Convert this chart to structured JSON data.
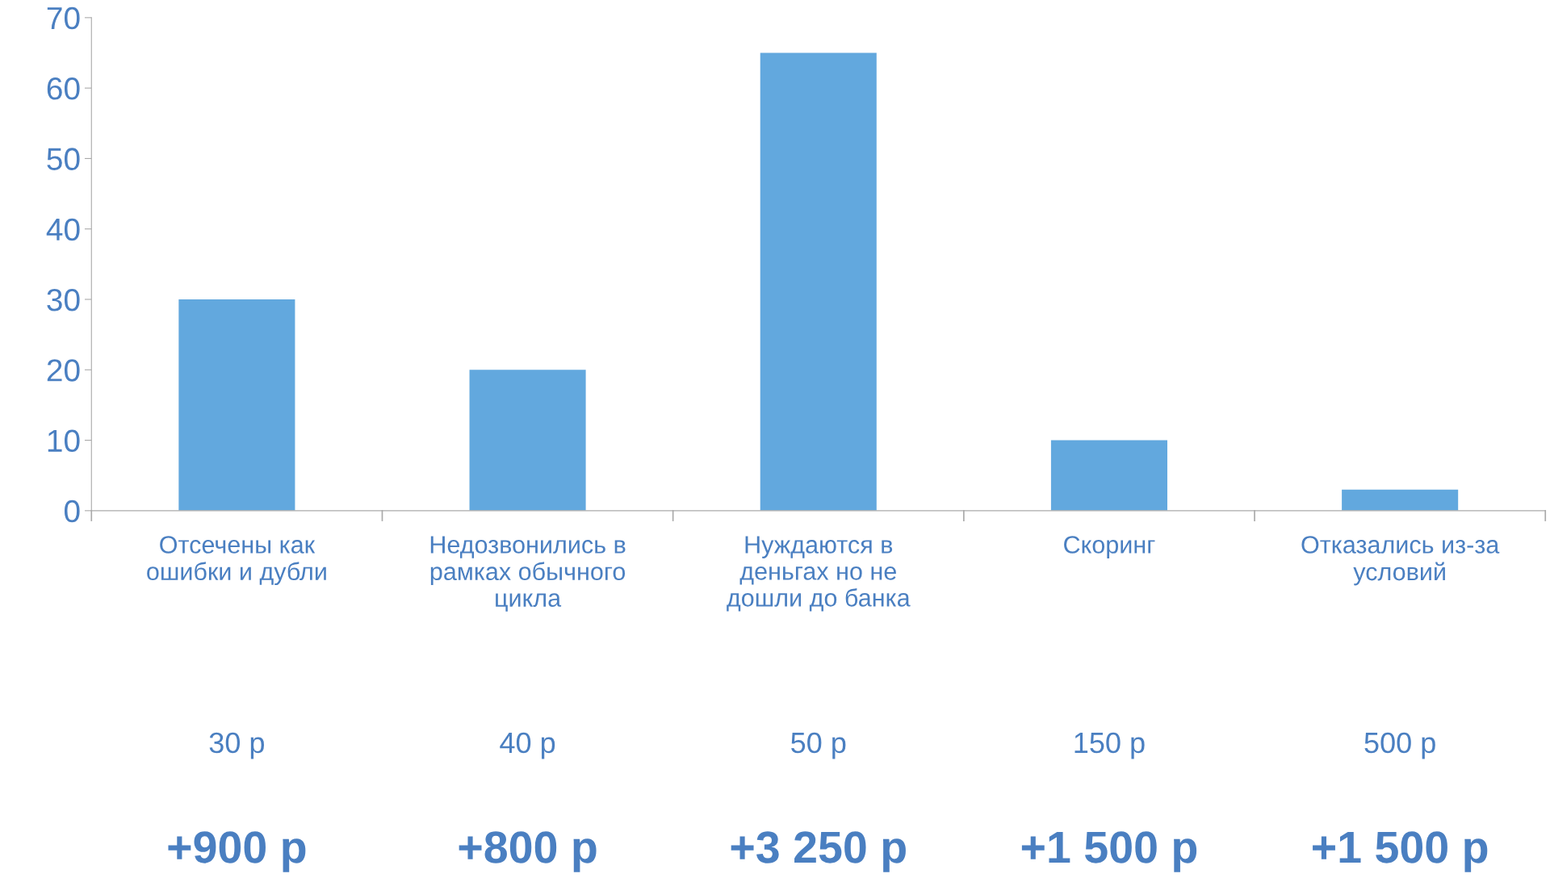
{
  "chart_data": {
    "type": "bar",
    "categories": [
      "Отсечены как\nошибки и дубли",
      "Недозвонились в\nрамках обычного\nцикла",
      "Нуждаются в\nденьгах но не\nдошли до банка",
      "Скоринг",
      "Отказались из-за\nусловий"
    ],
    "values": [
      30,
      20,
      65,
      10,
      3
    ],
    "color": "#62a8de",
    "ylim": [
      0,
      70
    ],
    "yticks": [
      0,
      10,
      20,
      30,
      40,
      50,
      60,
      70
    ],
    "grid": false,
    "legend": false,
    "annotations": [
      "30 р",
      "40 р",
      "50 р",
      "150 р",
      "500 р",
      "+900 р",
      "+800 р",
      "+3 250 р",
      "+1 500 р",
      "+1 500 р"
    ]
  }
}
